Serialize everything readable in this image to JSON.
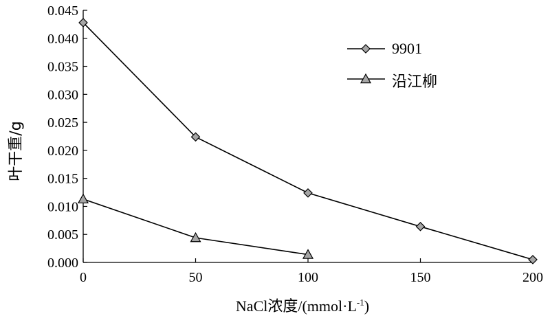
{
  "chart_data": {
    "type": "line",
    "xlabel": "NaCl浓度/(mmol·L",
    "xlabel_sup": "-1",
    "xlabel_close": ")",
    "ylabel": "叶干重/g",
    "xlim": [
      0,
      200
    ],
    "ylim": [
      0,
      0.045
    ],
    "x_ticks": [
      "0",
      "50",
      "100",
      "150",
      "200"
    ],
    "y_ticks": [
      "0.000",
      "0.005",
      "0.010",
      "0.015",
      "0.020",
      "0.025",
      "0.030",
      "0.035",
      "0.040",
      "0.045"
    ],
    "grid": false,
    "legend_position": "top-right",
    "series": [
      {
        "name": "9901",
        "marker": "diamond",
        "color": "#a6a6a6",
        "x": [
          0,
          50,
          100,
          150,
          200
        ],
        "y": [
          0.0428,
          0.0224,
          0.0124,
          0.0064,
          0.0005
        ]
      },
      {
        "name": "沿江柳",
        "marker": "triangle",
        "color": "#a6a6a6",
        "x": [
          0,
          50,
          100
        ],
        "y": [
          0.0113,
          0.0044,
          0.0014
        ]
      }
    ]
  }
}
